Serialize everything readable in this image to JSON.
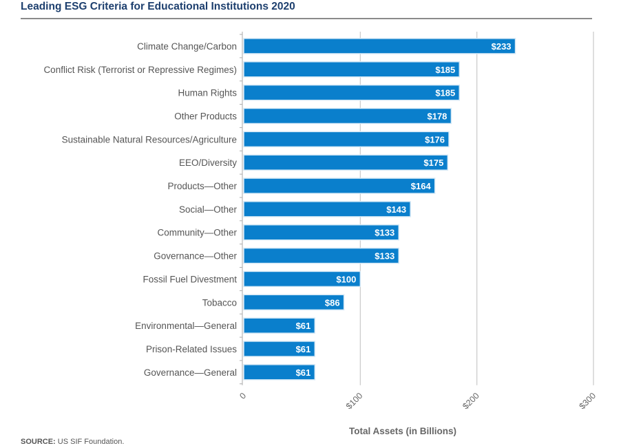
{
  "chart_data": {
    "type": "bar",
    "orientation": "horizontal",
    "title": "Leading ESG Criteria for Educational Institutions 2020",
    "xlabel": "Total Assets (in Billions)",
    "ylabel": "",
    "xlim": [
      0,
      300
    ],
    "xticks": [
      0,
      100,
      200,
      300
    ],
    "xtick_labels": [
      "0",
      "$100",
      "$200",
      "$300"
    ],
    "grid": "vertical",
    "bar_color": "#0a7fcc",
    "categories": [
      "Climate Change/Carbon",
      "Conflict Risk (Terrorist or Repressive Regimes)",
      "Human Rights",
      "Other Products",
      "Sustainable Natural Resources/Agriculture",
      "EEO/Diversity",
      "Products—Other",
      "Social—Other",
      "Community—Other",
      "Governance—Other",
      "Fossil Fuel Divestment",
      "Tobacco",
      "Environmental—General",
      "Prison-Related Issues",
      "Governance—General"
    ],
    "values": [
      233,
      185,
      185,
      178,
      176,
      175,
      164,
      143,
      133,
      133,
      100,
      86,
      61,
      61,
      61
    ],
    "data_labels": [
      "$233",
      "$185",
      "$185",
      "$178",
      "$176",
      "$175",
      "$164",
      "$143",
      "$133",
      "$133",
      "$100",
      "$86",
      "$61",
      "$61",
      "$61"
    ]
  },
  "source": {
    "label": "SOURCE:",
    "text": "US SIF Foundation."
  }
}
